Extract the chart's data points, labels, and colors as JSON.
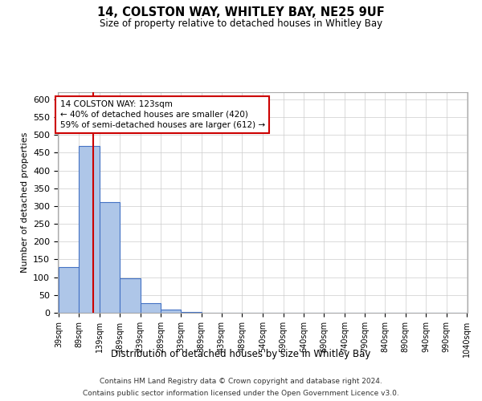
{
  "title": "14, COLSTON WAY, WHITLEY BAY, NE25 9UF",
  "subtitle": "Size of property relative to detached houses in Whitley Bay",
  "xlabel": "Distribution of detached houses by size in Whitley Bay",
  "ylabel": "Number of detached properties",
  "bar_edges": [
    39,
    89,
    139,
    189,
    239,
    289,
    339,
    389,
    439,
    489,
    540,
    590,
    640,
    690,
    740,
    790,
    840,
    890,
    940,
    990,
    1040
  ],
  "bar_heights": [
    128,
    470,
    312,
    97,
    26,
    10,
    3,
    1,
    0,
    0,
    0,
    0,
    0,
    0,
    0,
    0,
    0,
    0,
    0,
    0
  ],
  "bar_color": "#aec6e8",
  "bar_edge_color": "#4472c4",
  "property_line_x": 123,
  "property_line_color": "#cc0000",
  "annotation_text": "14 COLSTON WAY: 123sqm\n← 40% of detached houses are smaller (420)\n59% of semi-detached houses are larger (612) →",
  "annotation_box_color": "#ffffff",
  "annotation_box_edge_color": "#cc0000",
  "ylim": [
    0,
    620
  ],
  "yticks": [
    0,
    50,
    100,
    150,
    200,
    250,
    300,
    350,
    400,
    450,
    500,
    550,
    600
  ],
  "tick_labels": [
    "39sqm",
    "89sqm",
    "139sqm",
    "189sqm",
    "239sqm",
    "289sqm",
    "339sqm",
    "389sqm",
    "439sqm",
    "489sqm",
    "540sqm",
    "590sqm",
    "640sqm",
    "690sqm",
    "740sqm",
    "790sqm",
    "840sqm",
    "890sqm",
    "940sqm",
    "990sqm",
    "1040sqm"
  ],
  "footer_line1": "Contains HM Land Registry data © Crown copyright and database right 2024.",
  "footer_line2": "Contains public sector information licensed under the Open Government Licence v3.0.",
  "background_color": "#ffffff",
  "grid_color": "#cccccc"
}
